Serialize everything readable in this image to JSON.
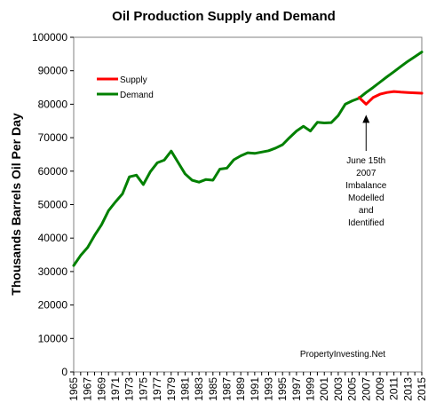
{
  "chart_data": {
    "type": "line",
    "title": "Oil Production Supply and Demand",
    "xlabel": "",
    "ylabel": "Thousands Barrels Oil Per Day",
    "xlim": [
      1965,
      2015
    ],
    "ylim": [
      0,
      100000
    ],
    "yticks": [
      0,
      10000,
      20000,
      30000,
      40000,
      50000,
      60000,
      70000,
      80000,
      90000,
      100000
    ],
    "yticklabels": [
      "0",
      "10000",
      "20000",
      "30000",
      "40000",
      "50000",
      "60000",
      "70000",
      "80000",
      "90000",
      "100000"
    ],
    "xticklabels": [
      "1965",
      "1967",
      "1969",
      "1971",
      "1973",
      "1975",
      "1977",
      "1979",
      "1981",
      "1983",
      "1985",
      "1987",
      "1989",
      "1991",
      "1993",
      "1995",
      "1997",
      "1999",
      "2001",
      "2003",
      "2005",
      "2007",
      "2009",
      "2011",
      "2013",
      "2015"
    ],
    "grid": false,
    "legend_position": "top-left",
    "series": [
      {
        "name": "Supply",
        "color": "#ff0000",
        "x": [
          2006,
          2007,
          2008,
          2009,
          2010,
          2011,
          2012,
          2013,
          2014,
          2015
        ],
        "y": [
          82000,
          80000,
          82000,
          83000,
          83500,
          83800,
          83600,
          83500,
          83400,
          83300
        ]
      },
      {
        "name": "Demand",
        "color": "#008000",
        "x": [
          1965,
          1966,
          1967,
          1968,
          1969,
          1970,
          1971,
          1972,
          1973,
          1974,
          1975,
          1976,
          1977,
          1978,
          1979,
          1980,
          1981,
          1982,
          1983,
          1984,
          1985,
          1986,
          1987,
          1988,
          1989,
          1990,
          1991,
          1992,
          1993,
          1994,
          1995,
          1996,
          1997,
          1998,
          1999,
          2000,
          2001,
          2002,
          2003,
          2004,
          2005,
          2006,
          2007,
          2008,
          2009,
          2010,
          2011,
          2012,
          2013,
          2014,
          2015
        ],
        "y": [
          31800,
          34800,
          37200,
          40800,
          44000,
          48200,
          50800,
          53200,
          58300,
          58800,
          56000,
          59800,
          62500,
          63300,
          66000,
          62600,
          59200,
          57300,
          56700,
          57500,
          57300,
          60600,
          60900,
          63400,
          64600,
          65500,
          65300,
          65700,
          66100,
          66900,
          67900,
          70000,
          72000,
          73400,
          72000,
          74600,
          74400,
          74500,
          76600,
          80000,
          81000,
          81800,
          83500,
          85000,
          86600,
          88200,
          89700,
          91300,
          92800,
          94200,
          95600
        ]
      }
    ],
    "annotations": [
      {
        "text_lines": [
          "June 15th",
          "2007",
          "Imbalance",
          "Modelled",
          "and",
          "Identified"
        ],
        "arrow_x": 2007,
        "arrow_y": 80000
      }
    ],
    "watermark": "PropertyInvesting.Net"
  }
}
